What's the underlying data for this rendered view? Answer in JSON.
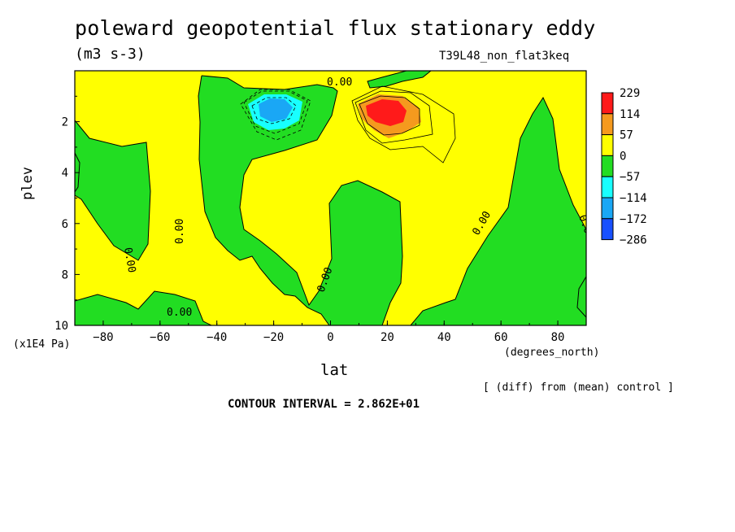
{
  "chart_data": {
    "type": "contour",
    "title": "poleward geopotential flux stationary eddy",
    "units": "(m3 s-3)",
    "run_label": "T39L48_non_flat3keq",
    "xlabel": "lat",
    "x_units": "(degrees_north)",
    "ylabel": "plev",
    "y_units": "(x1E4 Pa)",
    "xlim": [
      -90,
      90
    ],
    "ylim": [
      10,
      0
    ],
    "x_ticks": [
      "-80",
      "-60",
      "-40",
      "-20",
      "0",
      "20",
      "40",
      "60",
      "80"
    ],
    "y_ticks": [
      "2",
      "4",
      "6",
      "8",
      "10"
    ],
    "colorbar": {
      "levels": [
        "229",
        "114",
        "57",
        "0",
        "−57",
        "−114",
        "−172",
        "−286"
      ],
      "colors": [
        "#ff1a1a",
        "#f59a1e",
        "#ffff00",
        "#22dd22",
        "#18ffff",
        "#1aa7f5",
        "#1850ff"
      ]
    },
    "contour_label": "0.00",
    "extrema": [
      {
        "kind": "min",
        "lat": -19,
        "plev": 1.4,
        "value": -286
      },
      {
        "kind": "max",
        "lat": 20,
        "plev": 1.6,
        "value": 229
      }
    ],
    "note": "[ (diff) from (mean) control ]",
    "contour_interval": "CONTOUR INTERVAL = 2.862E+01"
  },
  "colors": {
    "positive_fill": "#ffff00",
    "negative_fill": "#22dd22",
    "max_core": "#ff1a1a",
    "max_ring": "#f59a1e",
    "min_core": "#1aa7f5",
    "min_ring": "#18ffff"
  }
}
